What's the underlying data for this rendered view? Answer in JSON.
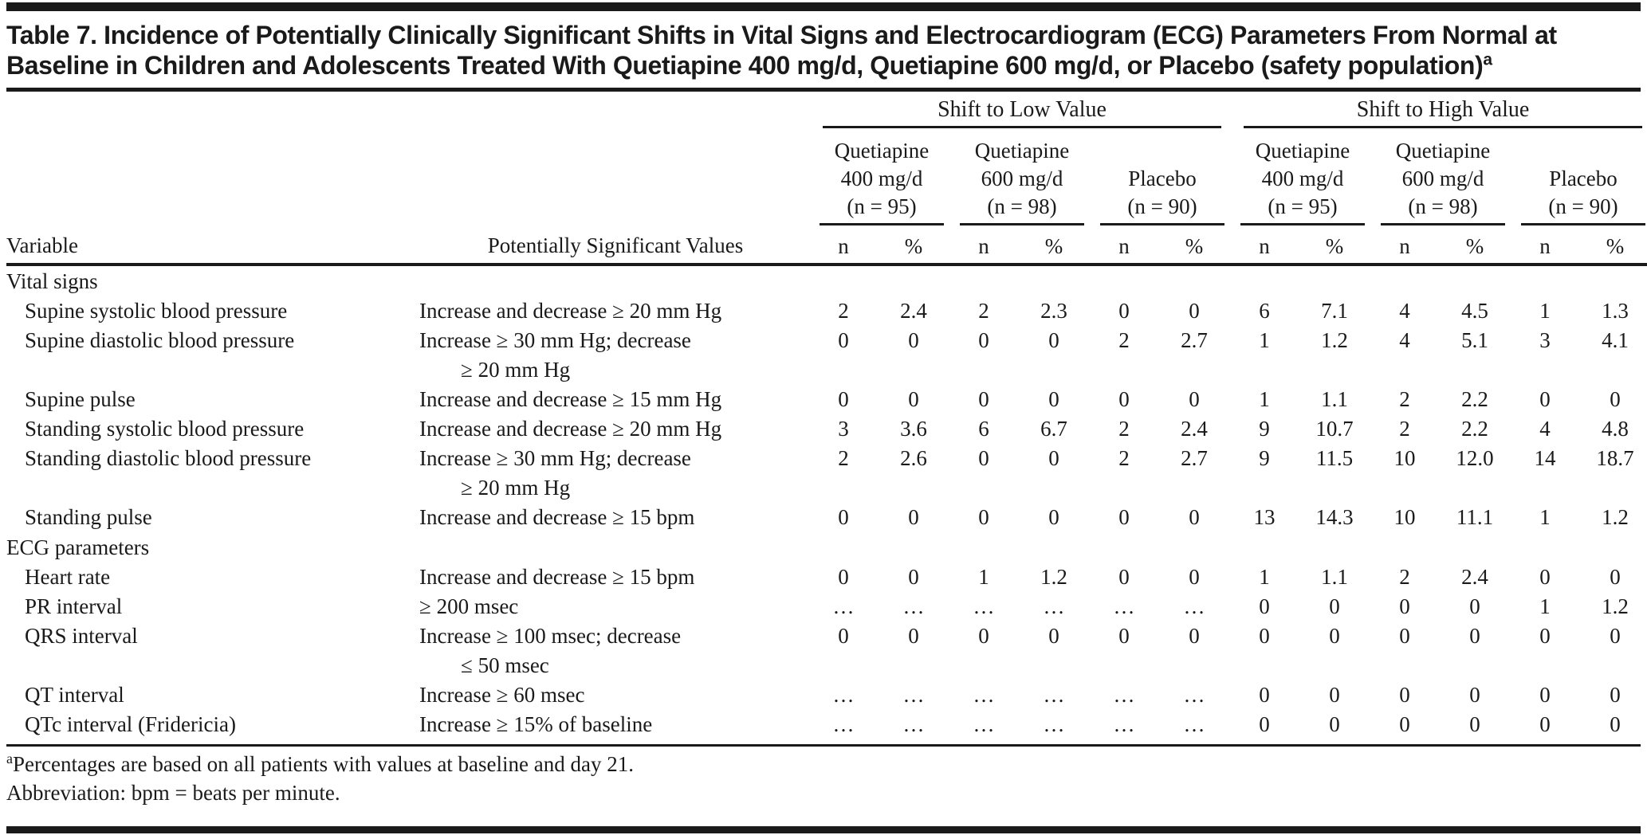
{
  "title": {
    "main": "Table 7. Incidence of Potentially Clinically Significant Shifts in Vital Signs and Electrocardiogram (ECG) Parameters From Normal at Baseline in Children and Adolescents Treated With Quetiapine 400 mg/d, Quetiapine 600 mg/d, or Placebo (safety population)",
    "sup": "a"
  },
  "table": {
    "col_variable": "Variable",
    "col_criteria": "Potentially Significant Values",
    "spanners": [
      "Shift to Low Value",
      "Shift to High Value"
    ],
    "groups": [
      {
        "lines": [
          "Quetiapine",
          "400 mg/d",
          "(n = 95)"
        ]
      },
      {
        "lines": [
          "Quetiapine",
          "600 mg/d",
          "(n = 98)"
        ]
      },
      {
        "lines": [
          "Placebo",
          "(n = 90)"
        ]
      }
    ],
    "subheaders": [
      "n",
      "%"
    ],
    "sections": [
      {
        "name": "Vital signs",
        "rows": [
          {
            "variable": "Supine systolic blood pressure",
            "criteria": [
              "Increase and decrease ≥ 20 mm Hg"
            ],
            "values": [
              "2",
              "2.4",
              "2",
              "2.3",
              "0",
              "0",
              "6",
              "7.1",
              "4",
              "4.5",
              "1",
              "1.3"
            ]
          },
          {
            "variable": "Supine diastolic blood pressure",
            "criteria": [
              "Increase ≥ 30 mm Hg; decrease",
              "≥ 20 mm Hg"
            ],
            "values": [
              "0",
              "0",
              "0",
              "0",
              "2",
              "2.7",
              "1",
              "1.2",
              "4",
              "5.1",
              "3",
              "4.1"
            ]
          },
          {
            "variable": "Supine pulse",
            "criteria": [
              "Increase and decrease ≥ 15 mm Hg"
            ],
            "values": [
              "0",
              "0",
              "0",
              "0",
              "0",
              "0",
              "1",
              "1.1",
              "2",
              "2.2",
              "0",
              "0"
            ]
          },
          {
            "variable": "Standing systolic blood pressure",
            "criteria": [
              "Increase and decrease ≥ 20 mm Hg"
            ],
            "values": [
              "3",
              "3.6",
              "6",
              "6.7",
              "2",
              "2.4",
              "9",
              "10.7",
              "2",
              "2.2",
              "4",
              "4.8"
            ]
          },
          {
            "variable": "Standing diastolic blood pressure",
            "criteria": [
              "Increase ≥ 30 mm Hg; decrease",
              "≥ 20 mm Hg"
            ],
            "values": [
              "2",
              "2.6",
              "0",
              "0",
              "2",
              "2.7",
              "9",
              "11.5",
              "10",
              "12.0",
              "14",
              "18.7"
            ]
          },
          {
            "variable": "Standing pulse",
            "criteria": [
              "Increase and decrease ≥ 15 bpm"
            ],
            "values": [
              "0",
              "0",
              "0",
              "0",
              "0",
              "0",
              "13",
              "14.3",
              "10",
              "11.1",
              "1",
              "1.2"
            ]
          }
        ]
      },
      {
        "name": "ECG parameters",
        "rows": [
          {
            "variable": "Heart rate",
            "criteria": [
              "Increase and decrease ≥ 15 bpm"
            ],
            "values": [
              "0",
              "0",
              "1",
              "1.2",
              "0",
              "0",
              "1",
              "1.1",
              "2",
              "2.4",
              "0",
              "0"
            ]
          },
          {
            "variable": "PR interval",
            "criteria": [
              "≥ 200 msec"
            ],
            "values": [
              "…",
              "…",
              "…",
              "…",
              "…",
              "…",
              "0",
              "0",
              "0",
              "0",
              "1",
              "1.2"
            ]
          },
          {
            "variable": "QRS interval",
            "criteria": [
              "Increase ≥ 100 msec; decrease",
              "≤ 50 msec"
            ],
            "values": [
              "0",
              "0",
              "0",
              "0",
              "0",
              "0",
              "0",
              "0",
              "0",
              "0",
              "0",
              "0"
            ]
          },
          {
            "variable": "QT interval",
            "criteria": [
              "Increase ≥ 60 msec"
            ],
            "values": [
              "…",
              "…",
              "…",
              "…",
              "…",
              "…",
              "0",
              "0",
              "0",
              "0",
              "0",
              "0"
            ]
          },
          {
            "variable": "QTc interval (Fridericia)",
            "criteria": [
              "Increase ≥ 15% of baseline"
            ],
            "values": [
              "…",
              "…",
              "…",
              "…",
              "…",
              "…",
              "0",
              "0",
              "0",
              "0",
              "0",
              "0"
            ]
          }
        ]
      }
    ]
  },
  "footnotes": [
    {
      "sup": "a",
      "text": "Percentages are based on all patients with values at baseline and day 21."
    },
    {
      "sup": "",
      "text": "Abbreviation: bpm = beats per minute."
    }
  ],
  "colors": {
    "text": "#1a1a1a",
    "background": "#ffffff",
    "rule": "#1a1a1a"
  }
}
